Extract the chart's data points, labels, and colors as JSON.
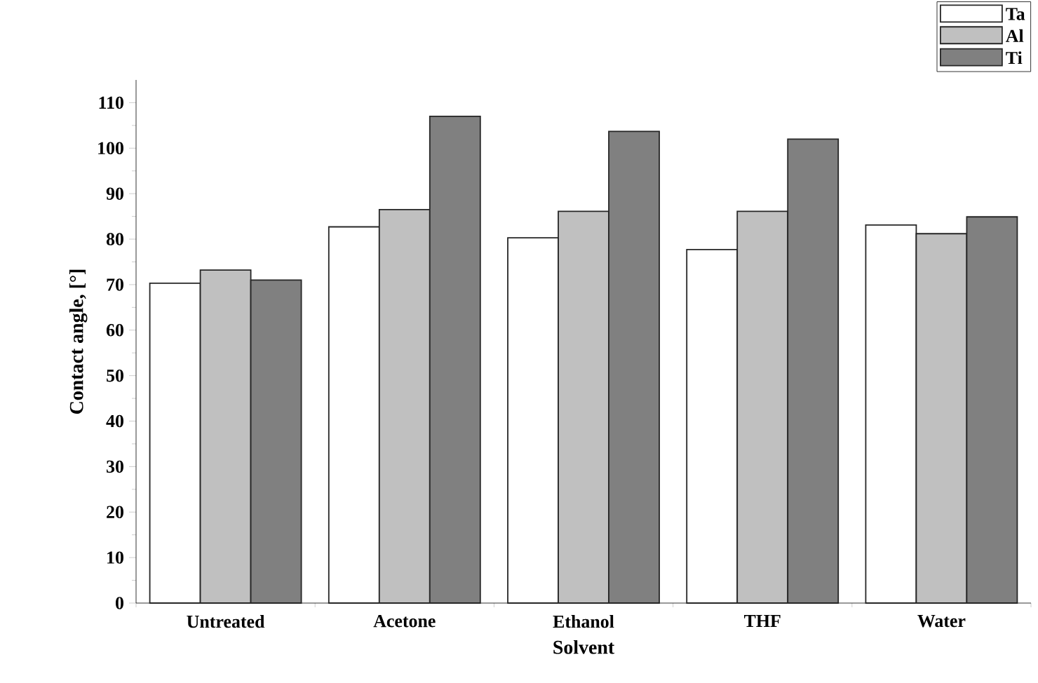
{
  "chart_data": {
    "type": "bar",
    "xlabel": "Solvent",
    "ylabel": "Contact angle, [°]",
    "categories": [
      "Untreated",
      "Acetone",
      "Ethanol",
      "THF",
      "Water"
    ],
    "series": [
      {
        "name": "Ta",
        "color": "#ffffff",
        "values": [
          70.3,
          82.7,
          80.3,
          77.7,
          83.1
        ]
      },
      {
        "name": "Al",
        "color": "#c0c0c0",
        "values": [
          73.2,
          86.5,
          86.1,
          86.1,
          81.2
        ]
      },
      {
        "name": "Ti",
        "color": "#808080",
        "values": [
          71.0,
          107.0,
          103.7,
          102.0,
          84.9
        ]
      }
    ],
    "ylim": [
      0,
      115
    ],
    "yticks": [
      0,
      10,
      20,
      30,
      40,
      50,
      60,
      70,
      80,
      90,
      100,
      110
    ],
    "grid": false,
    "legend": "top right"
  }
}
